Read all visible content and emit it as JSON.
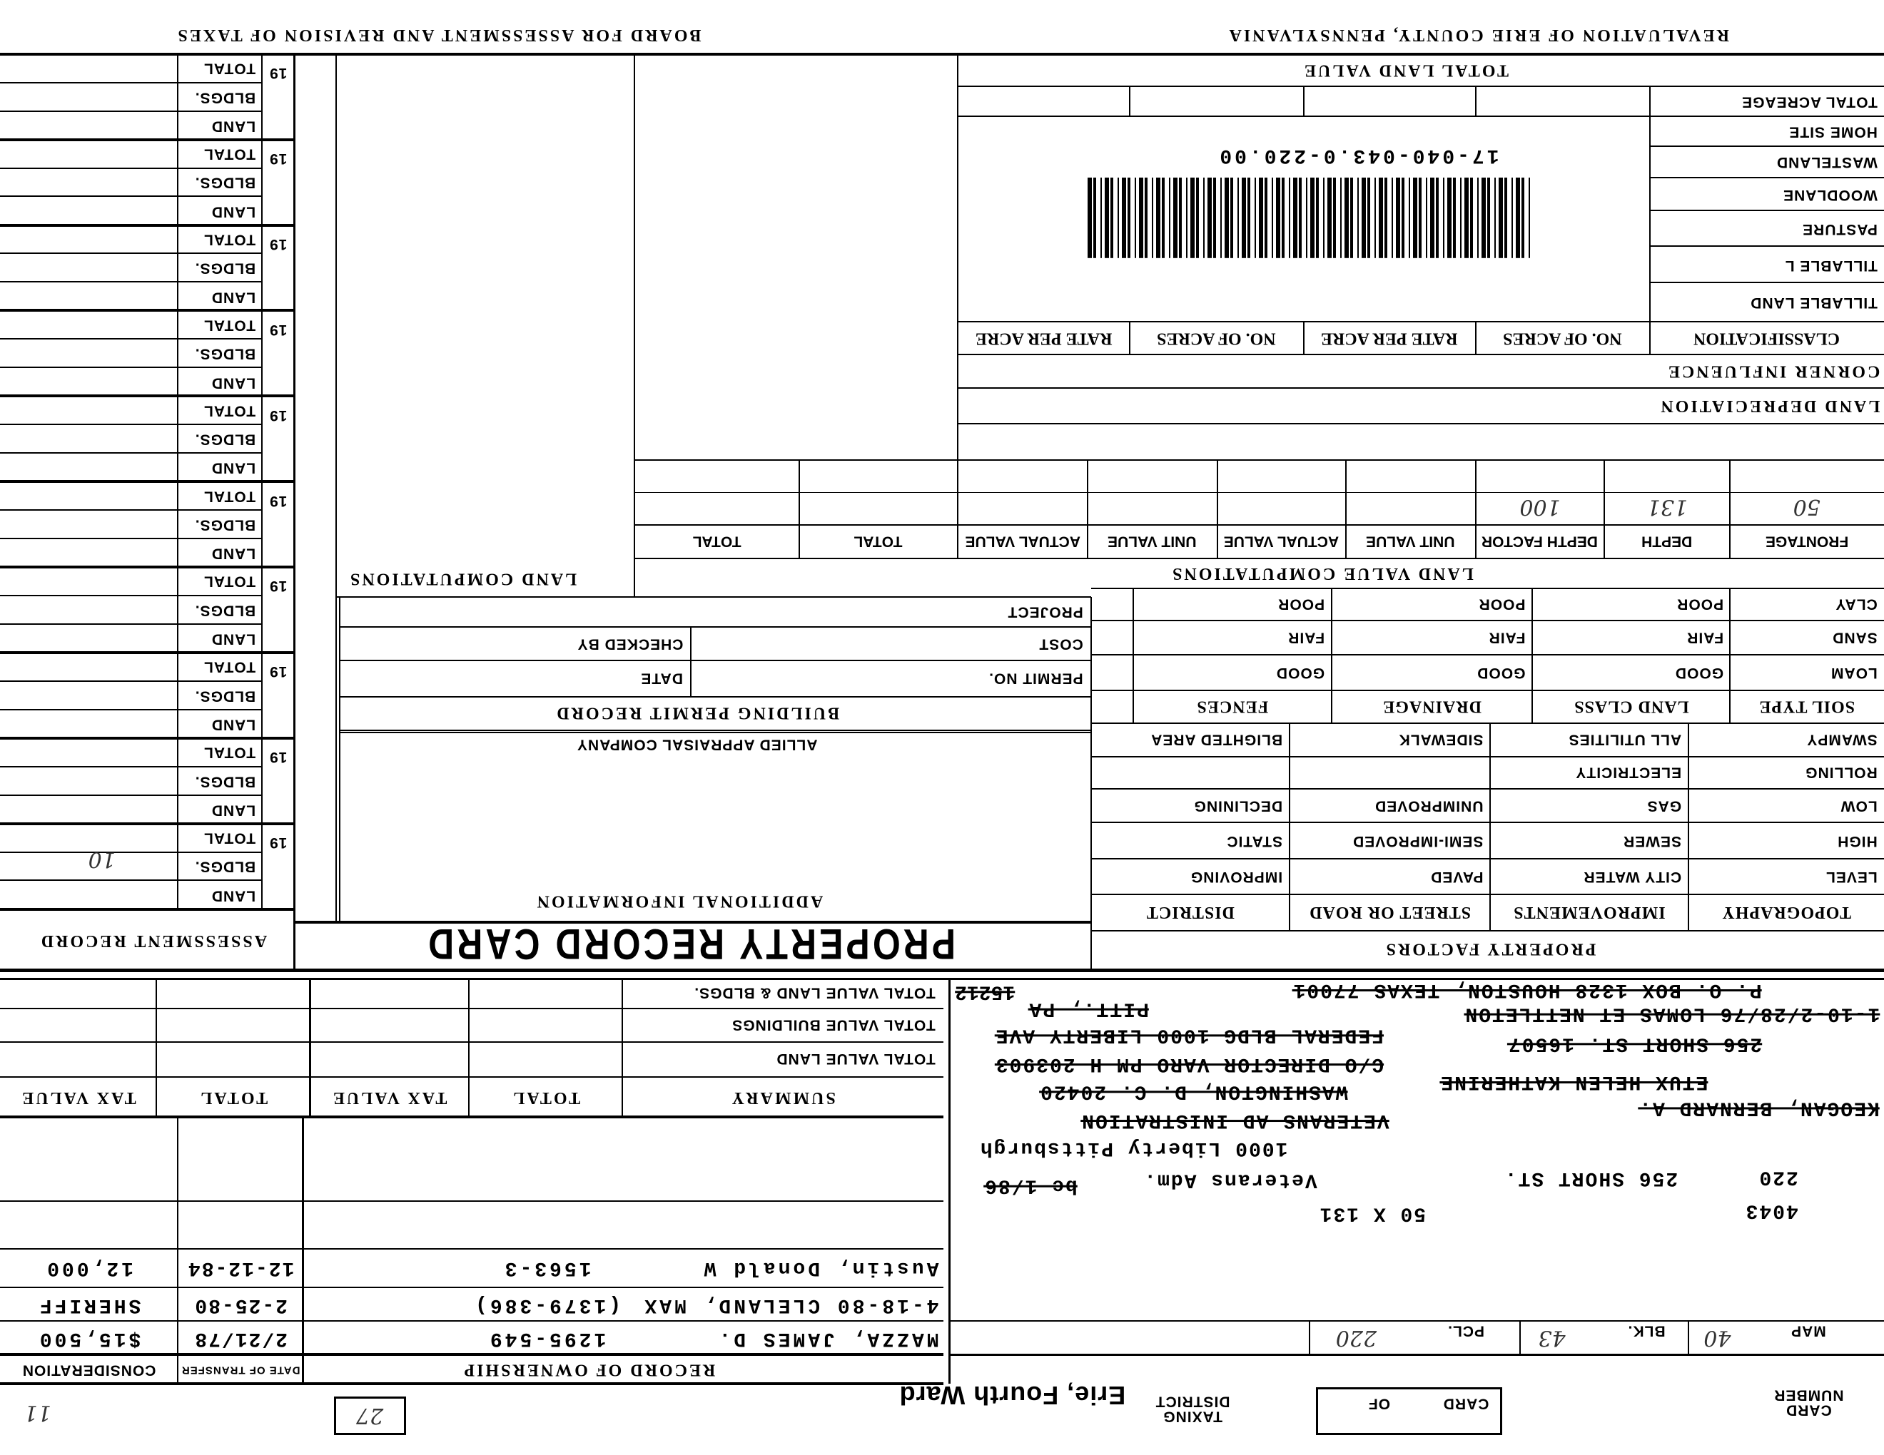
{
  "header": {
    "revaluation": "REVALUATION OF ERIE COUNTY, PENNSYLVANIA",
    "board": "BOARD FOR ASSESSMENT AND REVISION OF TAXES"
  },
  "card": {
    "card_number_label": "CARD NUMBER",
    "card_label": "CARD",
    "of_label": "OF",
    "taxing_district_label": "TAXING DISTRICT",
    "taxing_district": "Erie, Fourth Ward",
    "box_number": "27",
    "corner_mark": "11"
  },
  "parcel": {
    "map_label": "MAP",
    "map": "40",
    "blk_label": "BLK.",
    "blk": "43",
    "pcl_label": "PCL.",
    "pcl": "220",
    "parcel_id": "17-040-043.0-220.00"
  },
  "address_lines": [
    {
      "text": "4043",
      "struck": false
    },
    {
      "text": "220",
      "struck": false
    },
    {
      "text": "256 SHORT ST.",
      "struck": false
    },
    {
      "text": "50 X 131",
      "struck": false
    },
    {
      "text": "Veterans Adm.",
      "struck": false
    },
    {
      "text": "bc 1/86",
      "struck": true
    },
    {
      "text": "1000 Liberty   Pittsburgh",
      "struck": false
    },
    {
      "text": "VETERANS AD INISTRATION",
      "struck": true
    },
    {
      "text": "KEOGAN, BERNARD A.",
      "struck": true
    },
    {
      "text": "WASHINGTON, D. C. 20420",
      "struck": true
    },
    {
      "text": "ETUX HELEN KATHERINE",
      "struck": true
    },
    {
      "text": "C/O DIRECTOR VARO PM H 203903",
      "struck": true
    },
    {
      "text": "256 SHORT ST. 16507",
      "struck": true
    },
    {
      "text": "FEDERAL BLDG 1000 LIBERTY AVE",
      "struck": true
    },
    {
      "text": "1-10-2/28/76 LOMAS ET NETTLETON",
      "struck": true
    },
    {
      "text": "PITT., PA",
      "struck": true
    },
    {
      "text": "P. O. BOX 1328 HOUSTON, TEXAS 77001",
      "struck": true
    },
    {
      "text": "15212",
      "struck": true
    }
  ],
  "ownership": {
    "title": "RECORD OF OWNERSHIP",
    "date_label": "DATE OF TRANSFER",
    "consideration_label": "CONSIDERATION",
    "rows": [
      {
        "name": "MAZZA, JAMES D.",
        "book": "1295-549",
        "date": "2/21/78",
        "consideration": "$15,500"
      },
      {
        "name": "4-18-80 CLELAND, MAX",
        "book": "(1379-386)",
        "date": "2-25-80",
        "consideration": "SHERIFF"
      },
      {
        "name": "Austin, Donald W",
        "book": "1563-3",
        "date": "12-12-84",
        "consideration": "12,000"
      }
    ]
  },
  "summary": {
    "headers": [
      "SUMMARY",
      "TOTAL",
      "TAX VALUE",
      "TOTAL",
      "TAX VALUE"
    ],
    "rows": [
      "TOTAL VALUE LAND",
      "TOTAL VALUE BUILDINGS",
      "TOTAL VALUE LAND & BLDGS."
    ]
  },
  "property_factors": {
    "title": "PROPERTY FACTORS",
    "headers": [
      "TOPOGRAPHY",
      "IMPROVEMENTS",
      "STREET OR ROAD",
      "DISTRICT"
    ],
    "rows": [
      [
        "LEVEL",
        "CITY WATER",
        "PAVED",
        "IMPROVING"
      ],
      [
        "HIGH",
        "SEWER",
        "SEMI-IMPROVED",
        "STATIC"
      ],
      [
        "LOW",
        "GAS",
        "UNIMPROVED",
        "DECLINING"
      ],
      [
        "ROLLING",
        "ELECTRICITY",
        "",
        ""
      ],
      [
        "SWAMPY",
        "ALL UTILITIES",
        "SIDEWALK",
        "BLIGHTED AREA"
      ]
    ]
  },
  "soil": {
    "headers": [
      "SOIL TYPE",
      "LAND CLASS",
      "DRAINAGE",
      "FENCES"
    ],
    "rows": [
      [
        "LOAM",
        "GOOD",
        "GOOD",
        "GOOD"
      ],
      [
        "SAND",
        "FAIR",
        "FAIR",
        "FAIR"
      ],
      [
        "CLAY",
        "POOR",
        "POOR",
        "POOR"
      ]
    ]
  },
  "land_value": {
    "title": "LAND VALUE COMPUTATIONS",
    "headers": [
      "FRONTAGE",
      "DEPTH",
      "DEPTH FACTOR",
      "UNIT VALUE",
      "ACTUAL VALUE",
      "UNIT VALUE",
      "ACTUAL VALUE",
      "TOTAL",
      "TOTAL"
    ],
    "row": [
      "50",
      "131",
      "100"
    ],
    "land_depreciation": "LAND DEPRECIATION",
    "corner_influence": "CORNER INFLUENCE"
  },
  "classification": {
    "headers": [
      "CLASSIFICATION",
      "NO. OF ACRES",
      "RATE PER ACRE",
      "NO. OF ACRES",
      "RATE PER ACRE"
    ],
    "rows": [
      "TILLABLE LAND",
      "TILLABLE L",
      "PASTURE",
      "WOODLANE",
      "WASTELAND",
      "HOME SITE",
      "TOTAL ACREAGE"
    ],
    "total_land_value": "TOTAL LAND VALUE"
  },
  "middle": {
    "title": "PROPERTY RECORD CARD",
    "additional_information": "ADDITIONAL INFORMATION",
    "appraiser": "ALLIED APPRAISAL COMPANY",
    "building_permit_title": "BUILDING PERMIT RECORD",
    "permit_no": "PERMIT NO.",
    "date": "DATE",
    "cost": "COST",
    "checked_by": "CHECKED BY",
    "project": "PROJECT",
    "land_computations": "LAND COMPUTATIONS"
  },
  "assessment": {
    "title": "ASSESSMENT RECORD",
    "year_prefix": "19",
    "labels": [
      "LAND",
      "BLDGS.",
      "TOTAL"
    ],
    "note": "10"
  }
}
